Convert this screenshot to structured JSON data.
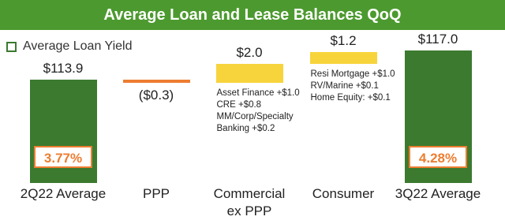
{
  "chart_data": {
    "type": "waterfall",
    "title": "Average Loan and Lease Balances QoQ",
    "categories": [
      "2Q22 Average",
      "PPP",
      "Commercial ex PPP",
      "Consumer",
      "3Q22 Average"
    ],
    "values": [
      113.9,
      -0.3,
      2.0,
      1.2,
      117.0
    ],
    "value_labels": [
      "$113.9",
      "($0.3)",
      "$2.0",
      "$1.2",
      "$117.0"
    ],
    "colors": [
      "#3b7a2f",
      "#ed7d31",
      "#f7d43c",
      "#f7d43c",
      "#3b7a2f"
    ],
    "ylim": [
      103,
      118
    ],
    "yield": {
      "name": "Average Loan Yield",
      "color": "#ed7d31",
      "values": [
        3.77,
        null,
        null,
        null,
        4.28
      ],
      "value_labels": [
        "3.77%",
        null,
        null,
        null,
        "4.28%"
      ]
    },
    "notes": [
      null,
      null,
      [
        "Asset Finance +$1.0",
        "CRE +$0.8",
        "MM/Corp/Specialty Banking +$0.2"
      ],
      [
        "Resi Mortgage +$1.0",
        "RV/Marine +$0.1",
        "Home Equity: +$0.1"
      ],
      null
    ]
  }
}
